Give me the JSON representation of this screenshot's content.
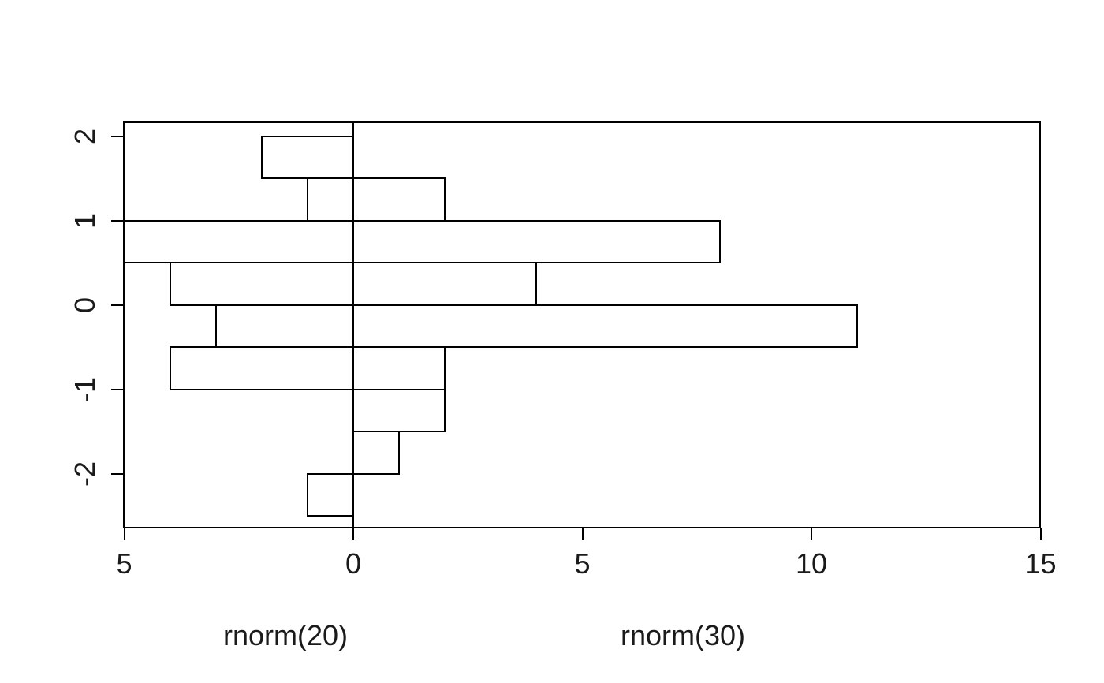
{
  "figure": {
    "background_color": "#ffffff",
    "line_color": "#000000",
    "bar_fill_color": "#ffffff",
    "text_color": "#1a1a1a"
  },
  "chart_data": {
    "type": "bar",
    "subtype": "back-to-back horizontal histograms (pyramid plot)",
    "orientation": "horizontal",
    "title": "",
    "grid": false,
    "legend": "none",
    "bin_edges": [
      -2.5,
      -2.0,
      -1.5,
      -1.0,
      -0.5,
      0.0,
      0.5,
      1.0,
      1.5,
      2.0
    ],
    "series": [
      {
        "name": "rnorm(20)",
        "side": "left",
        "axis_max": 5,
        "counts": [
          1,
          0,
          0,
          4,
          3,
          4,
          5,
          1,
          2
        ]
      },
      {
        "name": "rnorm(30)",
        "side": "right",
        "axis_max": 15,
        "counts": [
          0,
          1,
          2,
          2,
          11,
          4,
          8,
          2,
          0
        ]
      }
    ],
    "y_axis": {
      "tick_values": [
        -2,
        -1,
        0,
        1,
        2
      ],
      "tick_labels": [
        "-2",
        "-1",
        "0",
        "1",
        "2"
      ],
      "range": [
        -2.66,
        2.18
      ],
      "label_rotation_deg": 90
    },
    "x_axis": {
      "ticks": [
        {
          "label": "5",
          "value": 5,
          "side": "left"
        },
        {
          "label": "0",
          "value": 0,
          "side": "center"
        },
        {
          "label": "5",
          "value": 5,
          "side": "right"
        },
        {
          "label": "10",
          "value": 10,
          "side": "right"
        },
        {
          "label": "15",
          "value": 15,
          "side": "right"
        }
      ]
    },
    "x_axis_titles": [
      {
        "text": "rnorm(20)"
      },
      {
        "text": "rnorm(30)"
      }
    ]
  }
}
